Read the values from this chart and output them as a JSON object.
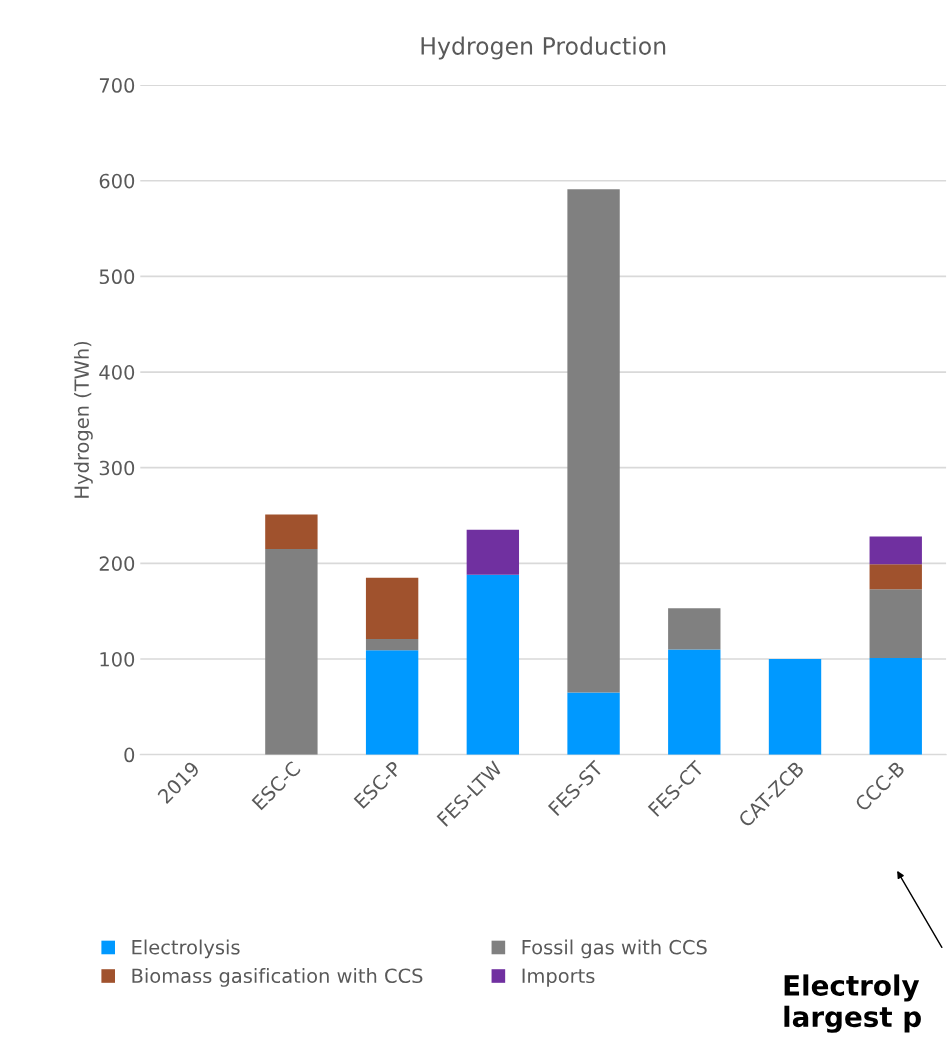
{
  "chart_data": {
    "type": "bar",
    "title": "Hydrogen Production",
    "ylabel": "Hydrogen (TWh)",
    "categories": [
      "2019",
      "ESC-C",
      "ESC-P",
      "FES-LTW",
      "FES-ST",
      "FES-CT",
      "CAT-ZCB",
      "CCC-B"
    ],
    "stacked": true,
    "series": [
      {
        "name": "Electrolysis",
        "color": "#0099ff",
        "values": [
          null,
          null,
          109,
          188,
          65,
          110,
          100,
          101
        ]
      },
      {
        "name": "Fossil gas with CCS",
        "color": "#808080",
        "values": [
          null,
          215,
          12,
          null,
          526,
          43,
          null,
          72
        ]
      },
      {
        "name": "Biomass gasification with CCS",
        "color": "#a0522d",
        "values": [
          null,
          36,
          64,
          null,
          null,
          null,
          null,
          26
        ]
      },
      {
        "name": "Imports",
        "color": "#7030a0",
        "values": [
          null,
          null,
          null,
          47,
          null,
          null,
          null,
          29
        ]
      }
    ],
    "ylim": [
      0,
      700
    ],
    "yticks": [
      0,
      100,
      200,
      300,
      400,
      500,
      600,
      700
    ],
    "grid": "y",
    "legend": "bottom",
    "annotations": [
      "Electroly\nlargest p"
    ]
  }
}
